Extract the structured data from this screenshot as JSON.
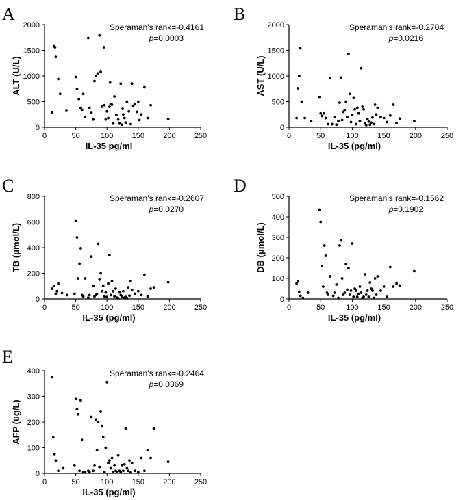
{
  "chart_data": [
    {
      "panel": "A",
      "type": "scatter",
      "xlabel": "IL-35 pg/ml",
      "ylabel": "ALT (U/L)",
      "xlim": [
        0,
        250
      ],
      "ylim": [
        0,
        2000
      ],
      "xticks": [
        0,
        50,
        100,
        150,
        200,
        250
      ],
      "yticks": [
        0,
        500,
        1000,
        1500,
        2000
      ],
      "annotation": {
        "rank": "Speraman's rank=-0.4161",
        "p_symbol": "p",
        "p_value": "=0.0003"
      },
      "x": [
        12,
        15,
        17,
        18,
        22,
        25,
        35,
        50,
        52,
        55,
        58,
        60,
        62,
        65,
        70,
        72,
        75,
        78,
        80,
        82,
        85,
        88,
        90,
        92,
        95,
        96,
        98,
        100,
        102,
        104,
        105,
        106,
        108,
        110,
        112,
        115,
        118,
        120,
        122,
        124,
        125,
        126,
        128,
        130,
        132,
        135,
        138,
        140,
        142,
        145,
        148,
        150,
        152,
        155,
        160,
        165,
        170,
        198
      ],
      "y": [
        290,
        1580,
        1560,
        1370,
        940,
        650,
        320,
        980,
        750,
        550,
        380,
        340,
        650,
        200,
        1740,
        380,
        280,
        150,
        900,
        1000,
        1050,
        1790,
        1080,
        400,
        1560,
        430,
        150,
        310,
        180,
        400,
        870,
        450,
        440,
        70,
        600,
        240,
        150,
        70,
        850,
        50,
        360,
        250,
        180,
        90,
        500,
        310,
        60,
        850,
        420,
        450,
        300,
        500,
        140,
        250,
        780,
        180,
        430,
        160
      ]
    },
    {
      "panel": "B",
      "type": "scatter",
      "xlabel": "IL-35 (pg/ml)",
      "ylabel": "AST (U/L)",
      "xlim": [
        0,
        250
      ],
      "ylim": [
        0,
        2000
      ],
      "xticks": [
        0,
        50,
        100,
        150,
        200,
        250
      ],
      "yticks": [
        0,
        500,
        1000,
        1500,
        2000
      ],
      "annotation": {
        "rank": "Speraman's rank=-0.2704",
        "p_symbol": "p",
        "p_value": "=0.0216"
      },
      "x": [
        12,
        14,
        16,
        18,
        20,
        25,
        35,
        48,
        50,
        52,
        55,
        58,
        62,
        65,
        68,
        72,
        75,
        78,
        80,
        82,
        84,
        86,
        88,
        90,
        92,
        94,
        96,
        98,
        100,
        102,
        104,
        106,
        108,
        110,
        112,
        114,
        116,
        118,
        120,
        122,
        124,
        126,
        128,
        130,
        132,
        134,
        136,
        138,
        140,
        145,
        150,
        155,
        160,
        165,
        170,
        175,
        198
      ],
      "y": [
        180,
        760,
        1000,
        1540,
        500,
        180,
        120,
        580,
        270,
        220,
        270,
        180,
        60,
        960,
        60,
        200,
        50,
        120,
        480,
        970,
        140,
        300,
        330,
        500,
        200,
        1430,
        650,
        100,
        240,
        570,
        350,
        60,
        380,
        270,
        120,
        1150,
        400,
        350,
        80,
        40,
        160,
        110,
        50,
        90,
        190,
        60,
        440,
        250,
        380,
        200,
        180,
        100,
        230,
        440,
        80,
        170,
        120
      ]
    },
    {
      "panel": "C",
      "type": "scatter",
      "xlabel": "IL-35 (pg/ml)",
      "ylabel": "TB (μmol/L)",
      "xlim": [
        0,
        250
      ],
      "ylim": [
        0,
        800
      ],
      "xticks": [
        0,
        50,
        100,
        150,
        200,
        250
      ],
      "yticks": [
        0,
        200,
        400,
        600,
        800
      ],
      "annotation": {
        "rank": "Speraman's rank=-0.2607",
        "p_symbol": "p",
        "p_value": "=0.0270"
      },
      "x": [
        12,
        15,
        18,
        20,
        22,
        28,
        36,
        48,
        50,
        52,
        54,
        56,
        58,
        60,
        62,
        65,
        70,
        72,
        75,
        78,
        80,
        82,
        84,
        86,
        88,
        90,
        92,
        94,
        96,
        98,
        100,
        102,
        104,
        106,
        108,
        110,
        112,
        114,
        116,
        118,
        120,
        122,
        124,
        126,
        128,
        130,
        132,
        134,
        136,
        138,
        140,
        145,
        150,
        155,
        160,
        165,
        170,
        175,
        198
      ],
      "y": [
        80,
        100,
        40,
        60,
        120,
        45,
        30,
        40,
        610,
        480,
        160,
        275,
        395,
        30,
        20,
        160,
        10,
        30,
        330,
        100,
        20,
        30,
        40,
        430,
        150,
        200,
        60,
        100,
        20,
        50,
        15,
        120,
        340,
        30,
        140,
        60,
        20,
        80,
        10,
        5,
        50,
        30,
        20,
        60,
        10,
        15,
        5,
        90,
        25,
        140,
        70,
        40,
        60,
        30,
        190,
        20,
        80,
        90,
        130
      ]
    },
    {
      "panel": "D",
      "type": "scatter",
      "xlabel": "IL-35 (pg/ml)",
      "ylabel": "DB (μmol/L)",
      "xlim": [
        0,
        250
      ],
      "ylim": [
        0,
        500
      ],
      "xticks": [
        0,
        50,
        100,
        150,
        200,
        250
      ],
      "yticks": [
        0,
        100,
        200,
        300,
        400,
        500
      ],
      "annotation": {
        "rank": "Speraman's rank=-0.1562",
        "p_symbol": "p",
        "p_value": "=0.1902"
      },
      "x": [
        12,
        14,
        16,
        18,
        22,
        30,
        48,
        50,
        52,
        54,
        56,
        58,
        60,
        62,
        65,
        70,
        72,
        75,
        78,
        80,
        82,
        84,
        86,
        88,
        90,
        92,
        94,
        96,
        98,
        100,
        102,
        104,
        106,
        108,
        110,
        112,
        114,
        116,
        118,
        120,
        122,
        124,
        126,
        128,
        130,
        132,
        134,
        136,
        138,
        140,
        145,
        150,
        155,
        160,
        165,
        170,
        175,
        198
      ],
      "y": [
        75,
        85,
        35,
        15,
        5,
        30,
        435,
        375,
        160,
        60,
        260,
        210,
        30,
        20,
        110,
        15,
        30,
        70,
        5,
        260,
        285,
        100,
        20,
        30,
        170,
        45,
        150,
        20,
        40,
        270,
        10,
        50,
        40,
        10,
        25,
        60,
        30,
        5,
        10,
        120,
        20,
        40,
        10,
        80,
        50,
        40,
        5,
        100,
        20,
        110,
        40,
        60,
        10,
        155,
        60,
        75,
        65,
        135
      ]
    },
    {
      "panel": "E",
      "type": "scatter",
      "xlabel": "IL-35 (pg/ml)",
      "ylabel": "AFP (ug/L)",
      "xlim": [
        0,
        250
      ],
      "ylim": [
        0,
        400
      ],
      "xticks": [
        0,
        50,
        100,
        150,
        200,
        250
      ],
      "yticks": [
        0,
        100,
        200,
        300,
        400
      ],
      "annotation": {
        "rank": "Speraman's rank=-0.2464",
        "p_symbol": "p",
        "p_value": "=0.0369"
      },
      "x": [
        12,
        14,
        16,
        18,
        22,
        30,
        48,
        50,
        52,
        54,
        56,
        58,
        60,
        62,
        65,
        70,
        72,
        75,
        78,
        80,
        82,
        84,
        86,
        88,
        90,
        92,
        94,
        96,
        98,
        100,
        102,
        104,
        106,
        108,
        110,
        112,
        114,
        116,
        118,
        120,
        122,
        124,
        126,
        128,
        130,
        132,
        134,
        136,
        138,
        140,
        145,
        150,
        155,
        160,
        165,
        170,
        175,
        198
      ],
      "y": [
        375,
        140,
        75,
        50,
        10,
        20,
        30,
        290,
        250,
        230,
        10,
        285,
        130,
        5,
        5,
        10,
        5,
        220,
        10,
        30,
        210,
        90,
        200,
        25,
        240,
        185,
        140,
        5,
        100,
        355,
        40,
        50,
        20,
        60,
        5,
        30,
        10,
        5,
        70,
        10,
        5,
        30,
        10,
        35,
        175,
        20,
        10,
        50,
        5,
        40,
        10,
        5,
        60,
        10,
        90,
        60,
        175,
        45
      ]
    }
  ]
}
